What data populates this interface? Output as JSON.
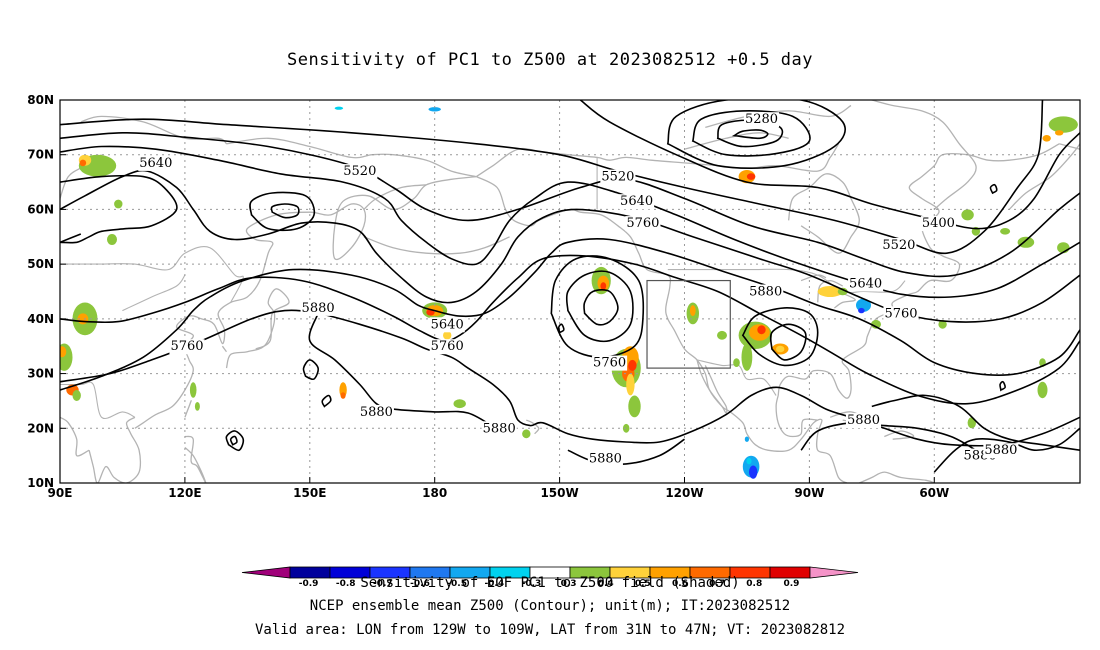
{
  "title": "Sensitivity of PC1 to Z500 at 2023082512 +0.5 day",
  "chart_data": {
    "type": "heatmap",
    "title": "Sensitivity of PC1 to Z500 at 2023082512 +0.5 day",
    "projection": "cylindrical equidistant",
    "lon_range": [
      90,
      335
    ],
    "lat_range": [
      10,
      80
    ],
    "lat_ticks": [
      "10N",
      "20N",
      "30N",
      "40N",
      "50N",
      "60N",
      "70N",
      "80N"
    ],
    "lon_ticks": [
      "90E",
      "120E",
      "150E",
      "180",
      "150W",
      "120W",
      "90W",
      "60W"
    ],
    "grid": true,
    "contour_labels": [
      {
        "text": "5640",
        "lon": 113,
        "lat": 68.5
      },
      {
        "text": "5520",
        "lon": 162,
        "lat": 67
      },
      {
        "text": "5520",
        "lon": 224,
        "lat": 66
      },
      {
        "text": "5280",
        "lon": 258.5,
        "lat": 76.5
      },
      {
        "text": "5640",
        "lon": 228.5,
        "lat": 61.5
      },
      {
        "text": "5760",
        "lon": 230,
        "lat": 57.5
      },
      {
        "text": "5400",
        "lon": 301,
        "lat": 57.5
      },
      {
        "text": "5520",
        "lon": 291.5,
        "lat": 53.5
      },
      {
        "text": "5640",
        "lon": 283.5,
        "lat": 46.5
      },
      {
        "text": "5880",
        "lon": 152,
        "lat": 42
      },
      {
        "text": "5640",
        "lon": 183,
        "lat": 39
      },
      {
        "text": "5760",
        "lon": 183,
        "lat": 35
      },
      {
        "text": "5760",
        "lon": 120.5,
        "lat": 35
      },
      {
        "text": "5760",
        "lon": 222,
        "lat": 32
      },
      {
        "text": "5880",
        "lon": 259.5,
        "lat": 45
      },
      {
        "text": "5760",
        "lon": 292,
        "lat": 41
      },
      {
        "text": "5880",
        "lon": 166,
        "lat": 23
      },
      {
        "text": "5880",
        "lon": 195.5,
        "lat": 20
      },
      {
        "text": "5880",
        "lon": 221,
        "lat": 14.5
      },
      {
        "text": "5880",
        "lon": 283,
        "lat": 21.5
      },
      {
        "text": "5880",
        "lon": 311,
        "lat": 15
      },
      {
        "text": "5880",
        "lon": 316,
        "lat": 16
      }
    ],
    "contour_label_texts": [
      "5640",
      "5520",
      "5520",
      "5280",
      "5640",
      "5760",
      "5400",
      "5520",
      "5640",
      "5880",
      "5640",
      "5760",
      "5760",
      "5760",
      "5880",
      "5760",
      "5880",
      "5880",
      "5880",
      "5880",
      "5880",
      "5880"
    ],
    "valid_box": {
      "lon": [
        231,
        251
      ],
      "lat": [
        31,
        47
      ]
    },
    "shaded_variable": "Sensitivity of EOF PC1 to Z500 field",
    "contour_variable": "NCEP ensemble mean Z500",
    "colorbar": {
      "levels": [
        "-0.9",
        "-0.8",
        "-0.7",
        "-0.6",
        "-0.5",
        "-0.4",
        "-0.3",
        "0.3",
        "0.4",
        "0.5",
        "0.6",
        "0.7",
        "0.8",
        "0.9"
      ],
      "colors": [
        "#a0007a",
        "#00009c",
        "#0000d8",
        "#1a34ff",
        "#1f78f0",
        "#12a8f0",
        "#00d2ef",
        "#ffffff",
        "#8cc63c",
        "#ffd23a",
        "#ffa100",
        "#ff6a00",
        "#ff3500",
        "#e00000",
        "#f593c8"
      ]
    }
  },
  "colorbar_label": "Sensitivity of EOF PC1 to Z500 field (Shaded)",
  "footer_line1": "NCEP ensemble mean Z500 (Contour); unit(m); IT:2023082512",
  "footer_line2": "Valid area: LON from 129W to 109W, LAT from 31N to 47N; VT: 2023082812"
}
